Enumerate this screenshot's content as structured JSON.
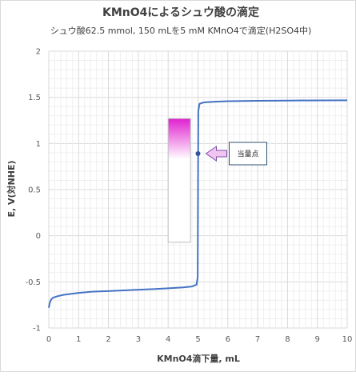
{
  "chart_data": {
    "type": "line",
    "title": "KMnO4によるシュウ酸の滴定",
    "subtitle": "シュウ酸62.5 mmol, 150 mLを5 mM KMnO4で滴定(H2SO4中)",
    "xlabel": "KMnO4滴下量, mL",
    "ylabel": "E, V(対NHE)",
    "xlim": [
      0,
      10
    ],
    "ylim": [
      -1,
      2
    ],
    "x_ticks": [
      "0",
      "1",
      "2",
      "3",
      "4",
      "5",
      "6",
      "7",
      "8",
      "9",
      "10"
    ],
    "y_ticks": [
      "-1",
      "-0.5",
      "0",
      "0.5",
      "1",
      "1.5",
      "2"
    ],
    "grid": true,
    "series": [
      {
        "color": "#4472C4",
        "x": [
          0.0,
          0.03,
          0.08,
          0.15,
          0.3,
          0.5,
          1.0,
          1.5,
          2.0,
          2.5,
          3.0,
          3.5,
          4.0,
          4.5,
          4.8,
          4.95,
          4.99,
          5.0,
          5.01,
          5.05,
          5.2,
          5.5,
          6.0,
          7.0,
          8.0,
          9.0,
          10.0
        ],
        "y": [
          -0.78,
          -0.73,
          -0.69,
          -0.67,
          -0.655,
          -0.64,
          -0.62,
          -0.605,
          -0.6,
          -0.593,
          -0.585,
          -0.578,
          -0.57,
          -0.56,
          -0.55,
          -0.53,
          -0.45,
          0.45,
          1.35,
          1.43,
          1.445,
          1.452,
          1.458,
          1.462,
          1.465,
          1.467,
          1.468
        ]
      }
    ],
    "equivalence_point": {
      "x": 5.0,
      "y": 0.89
    },
    "annotation": "当量点",
    "indicator_bar": {
      "x_from": 4.0,
      "x_to": 4.75,
      "y_top": 1.27,
      "y_bottom": -0.07,
      "color_top": "#E020D0"
    }
  }
}
